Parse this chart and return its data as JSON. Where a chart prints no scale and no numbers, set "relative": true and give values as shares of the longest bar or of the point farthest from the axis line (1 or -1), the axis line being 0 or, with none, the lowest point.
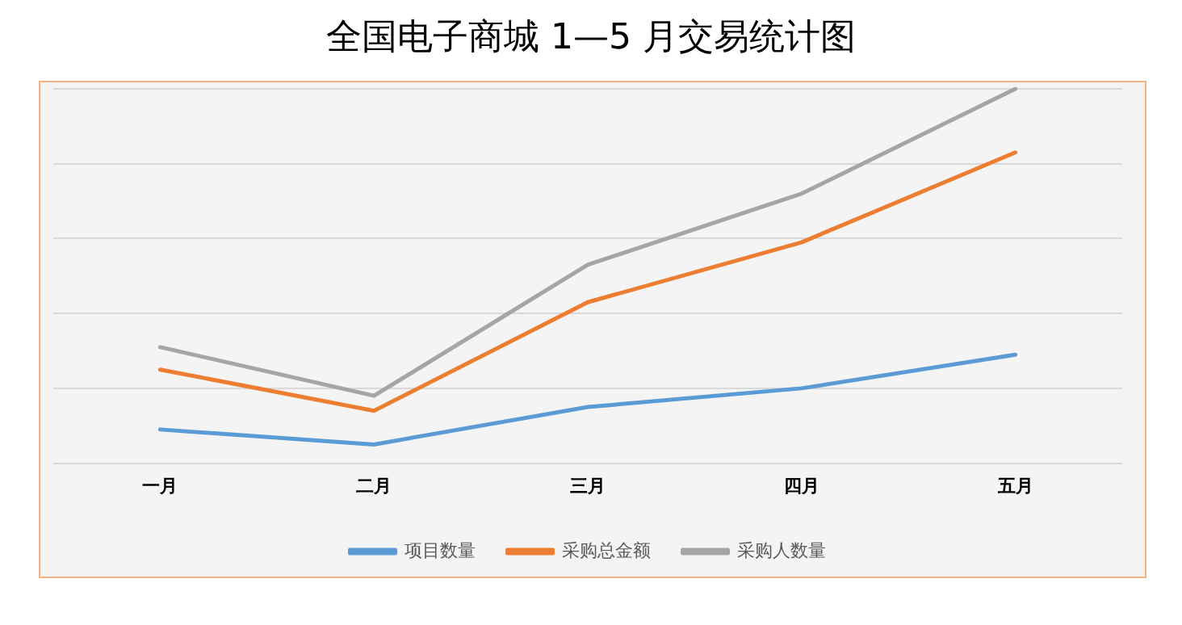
{
  "chart_data": {
    "type": "line",
    "title": "全国电子商城 1—5 月交易统计图",
    "relative": true,
    "categories": [
      "一月",
      "二月",
      "三月",
      "四月",
      "五月"
    ],
    "series": [
      {
        "name": "项目数量",
        "color": "#5b9bd5",
        "values": [
          0.09,
          0.05,
          0.15,
          0.2,
          0.29
        ]
      },
      {
        "name": "采购总金额",
        "color": "#ed7d31",
        "values": [
          0.25,
          0.14,
          0.43,
          0.59,
          0.83
        ]
      },
      {
        "name": "采购人数量",
        "color": "#a5a5a5",
        "values": [
          0.31,
          0.18,
          0.53,
          0.72,
          1
        ]
      }
    ],
    "grid": "y",
    "legend": "bottom",
    "marker": "none",
    "line_style": "solid"
  }
}
